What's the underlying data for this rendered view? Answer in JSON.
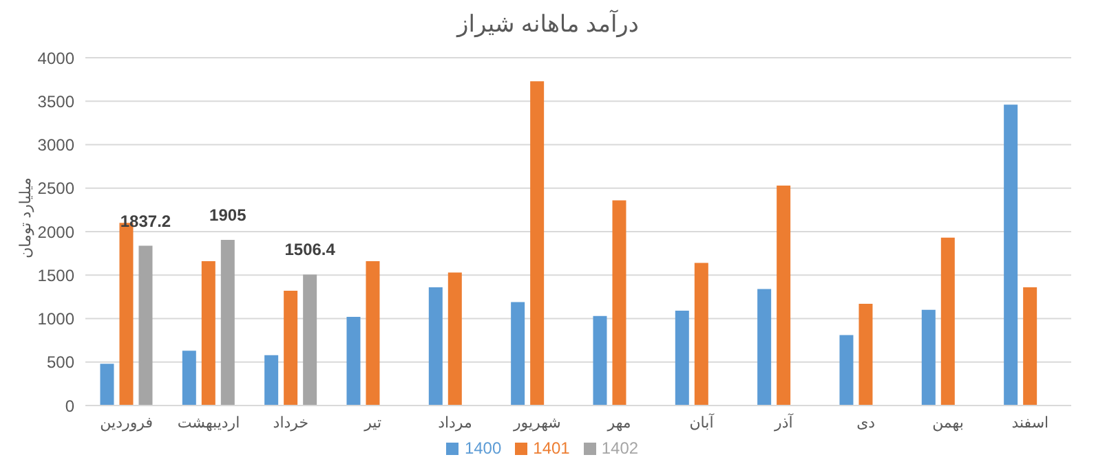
{
  "chart_data": {
    "type": "bar",
    "title": "درآمد ماهانه شیراز",
    "ylabel": "میلیارد تومان",
    "categories": [
      "فروردین",
      "اردیبهشت",
      "خرداد",
      "تیر",
      "مرداد",
      "شهریور",
      "مهر",
      "آبان",
      "آذر",
      "دی",
      "بهمن",
      "اسفند"
    ],
    "series": [
      {
        "name": "1400",
        "color": "#5b9bd5",
        "values": [
          480,
          630,
          580,
          1020,
          1360,
          1190,
          1030,
          1090,
          1340,
          810,
          1100,
          3460
        ]
      },
      {
        "name": "1401",
        "color": "#ed7d31",
        "values": [
          2100,
          1660,
          1320,
          1660,
          1530,
          3730,
          2360,
          1640,
          2530,
          1170,
          1930,
          1360
        ]
      },
      {
        "name": "1402",
        "color": "#a5a5a5",
        "values": [
          1837.2,
          1905,
          1506.4,
          null,
          null,
          null,
          null,
          null,
          null,
          null,
          null,
          null
        ],
        "value_labels": [
          "1837.2",
          "1905",
          "1506.4",
          null,
          null,
          null,
          null,
          null,
          null,
          null,
          null,
          null
        ]
      }
    ],
    "ylim": [
      0,
      4000
    ],
    "yticks": [
      0,
      500,
      1000,
      1500,
      2000,
      2500,
      3000,
      3500,
      4000
    ],
    "grid": "y",
    "legend": "bottom"
  }
}
